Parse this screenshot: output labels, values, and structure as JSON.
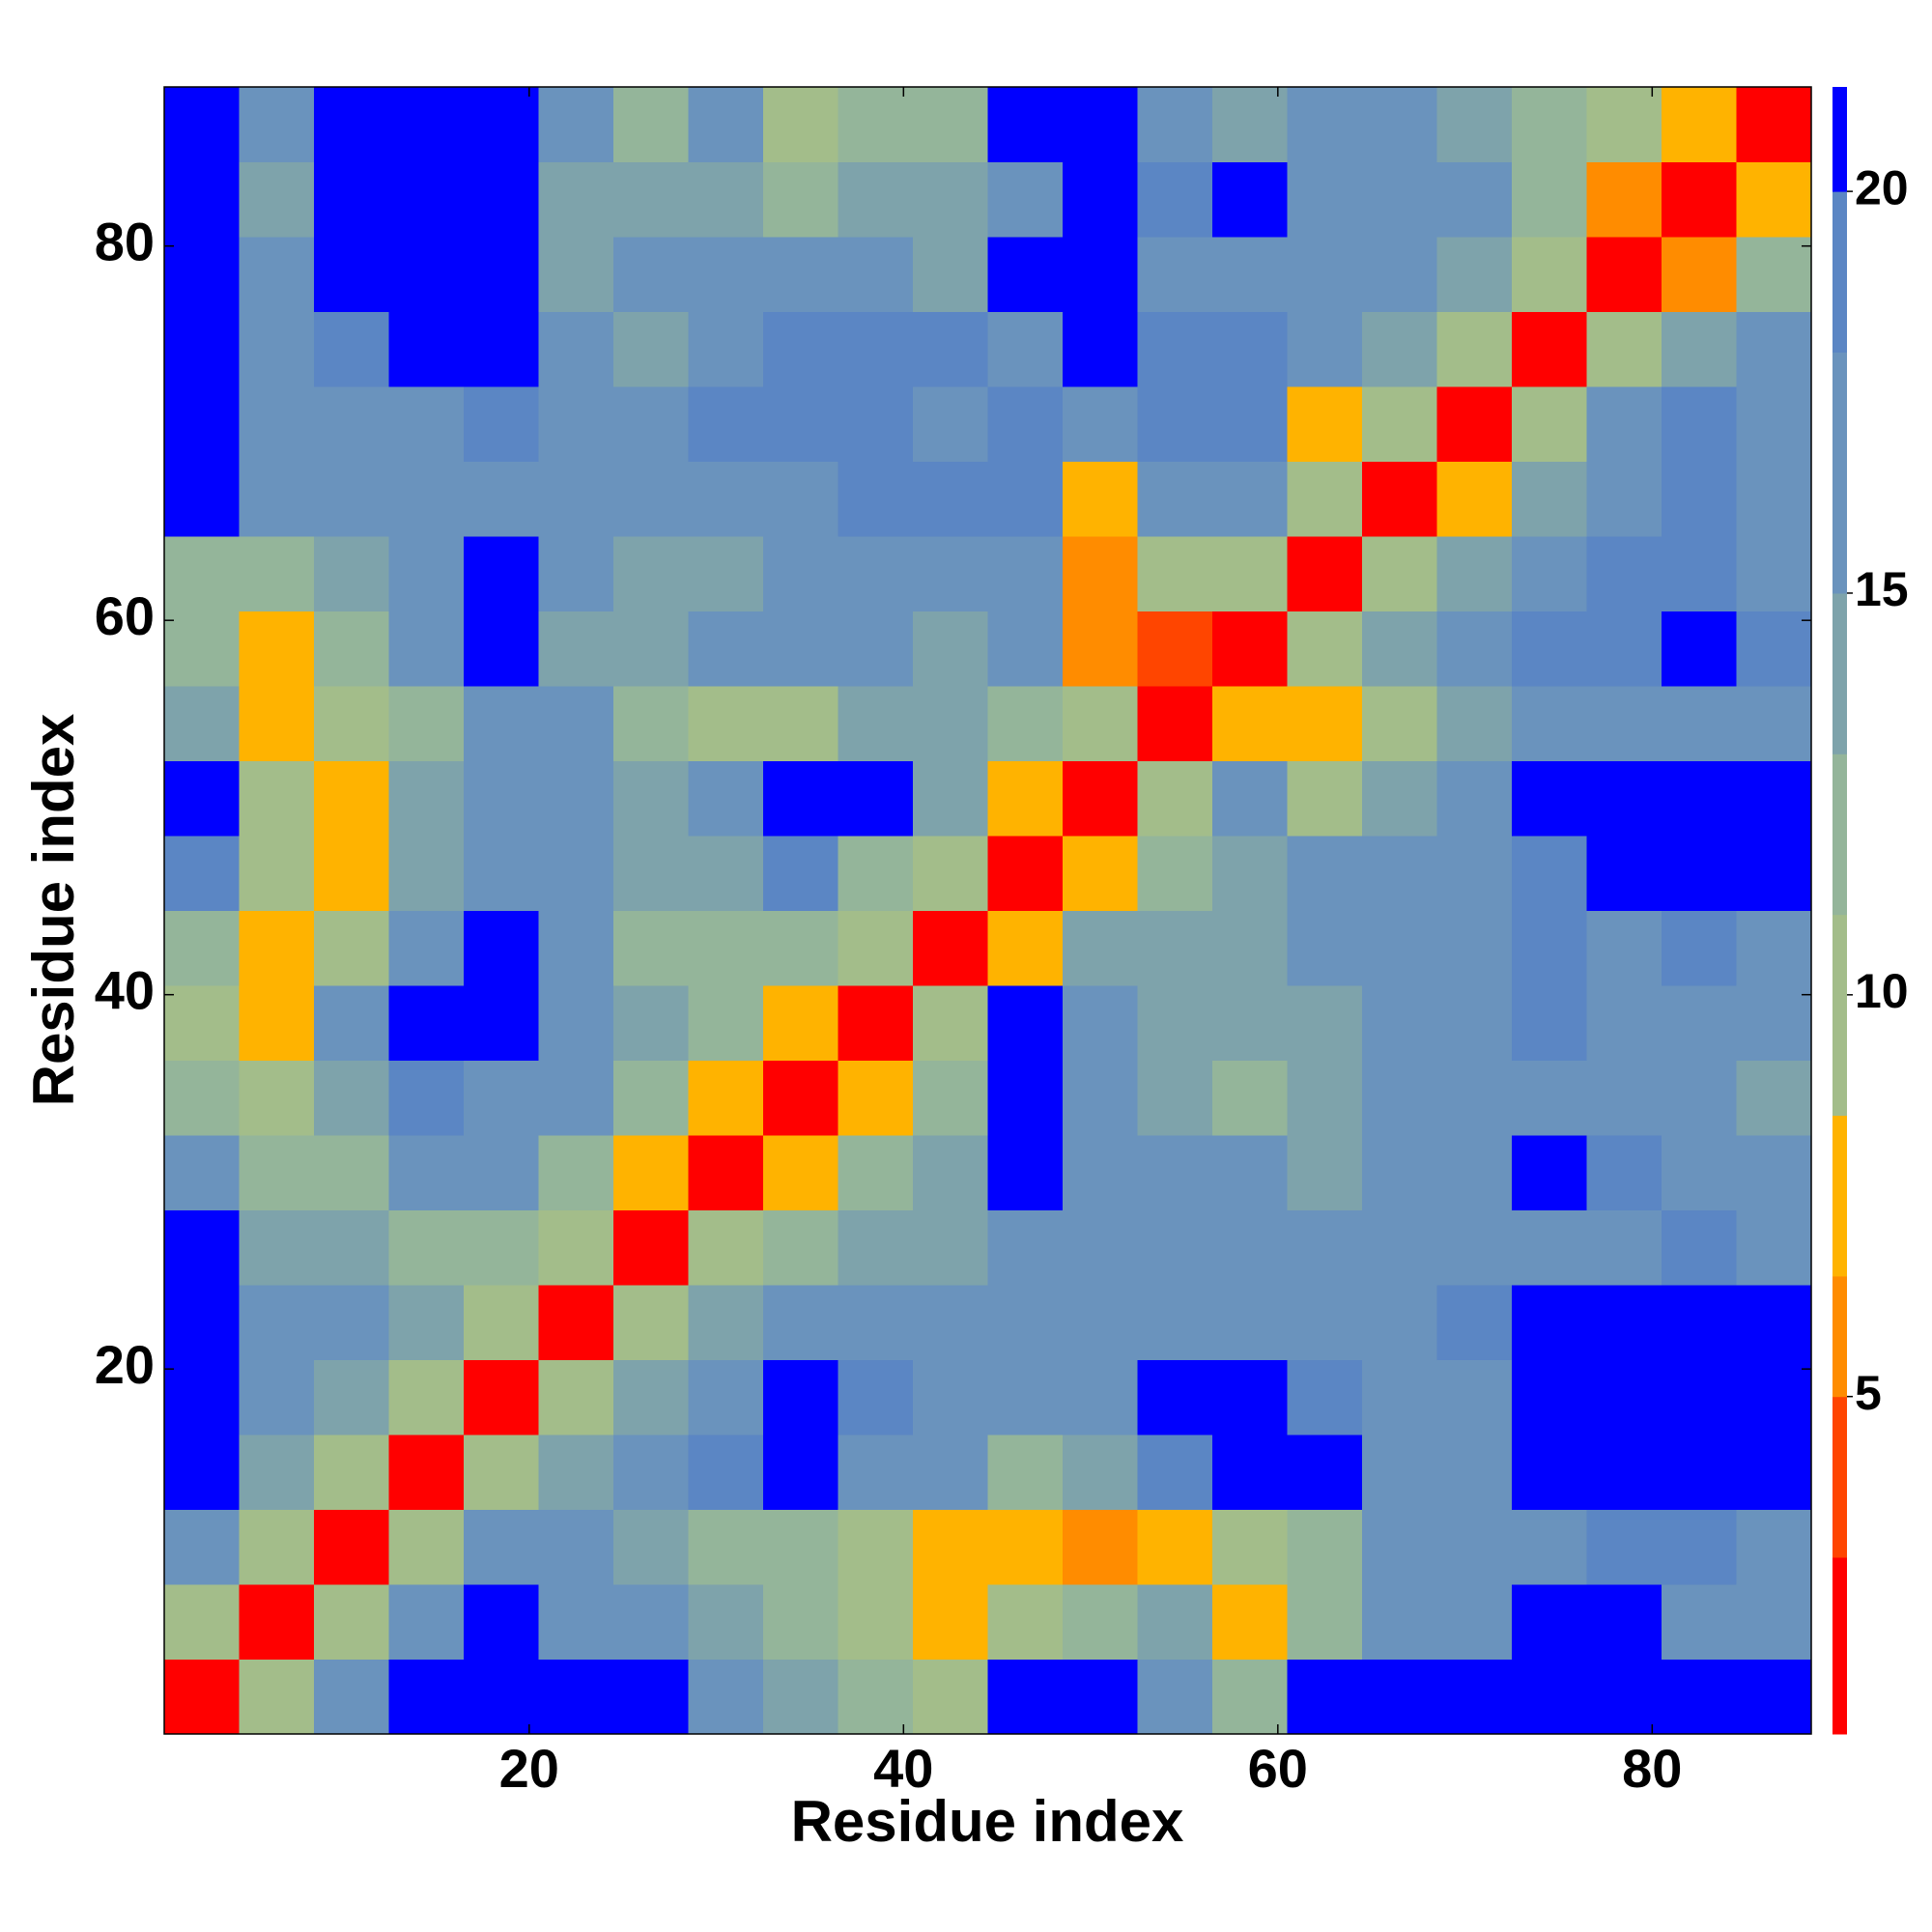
{
  "chart_data": {
    "type": "heatmap",
    "xlabel": "Residue index",
    "ylabel": "Residue index",
    "xlim": [
      0.5,
      88.5
    ],
    "ylim": [
      0.5,
      88.5
    ],
    "xticks": [
      20,
      40,
      60,
      80
    ],
    "yticks": [
      20,
      40,
      60,
      80
    ],
    "xbins": [
      0.5,
      4.5,
      8.5,
      12.5,
      16.5,
      20.5,
      24.5,
      28.5,
      32.5,
      36.5,
      40.5,
      44.5,
      48.5,
      52.5,
      56.5,
      60.5,
      64.5,
      68.5,
      72.5,
      76.5,
      80.5,
      84.5,
      88.5
    ],
    "ybins": [
      0.5,
      4.5,
      8.5,
      12.5,
      16.5,
      20.5,
      24.5,
      28.5,
      32.5,
      36.5,
      40.5,
      44.5,
      48.5,
      52.5,
      56.5,
      60.5,
      64.5,
      68.5,
      72.5,
      76.5,
      80.5,
      84.5,
      88.5
    ],
    "values": [
      [
        3,
        9,
        17,
        21,
        21,
        21,
        21,
        16,
        14,
        12,
        9,
        21,
        21,
        16,
        13,
        21,
        21,
        21,
        21,
        21,
        21,
        21
      ],
      [
        9,
        3,
        9,
        16,
        21,
        18,
        16,
        14,
        12,
        9,
        7,
        9,
        12,
        14,
        8,
        13,
        18,
        16,
        21,
        21,
        18,
        18
      ],
      [
        17,
        9,
        3,
        10,
        16,
        18,
        15,
        13,
        12,
        11,
        8,
        7,
        6,
        7,
        10,
        13,
        16,
        17,
        18,
        19,
        19,
        18
      ],
      [
        21,
        15,
        9,
        3,
        9,
        15,
        17,
        19,
        21,
        18,
        16,
        13,
        15,
        19,
        21,
        21,
        18,
        16,
        21,
        21,
        21,
        21
      ],
      [
        21,
        17,
        15,
        9,
        3,
        9,
        15,
        18,
        21,
        19,
        17,
        18,
        18,
        21,
        21,
        19,
        17,
        18,
        21,
        21,
        21,
        21
      ],
      [
        21,
        18,
        16,
        14,
        9,
        3,
        9,
        14,
        17,
        18,
        17,
        16,
        17,
        18,
        18,
        17,
        18,
        19,
        21,
        21,
        21,
        21
      ],
      [
        21,
        15,
        14,
        13,
        12,
        9,
        3,
        9,
        13,
        15,
        14,
        17,
        16,
        16,
        17,
        17,
        16,
        17,
        18,
        17,
        19,
        18
      ],
      [
        17,
        13,
        12,
        16,
        17,
        13,
        8,
        3,
        8,
        13,
        14,
        21,
        17,
        16,
        16,
        15,
        17,
        18,
        21,
        19,
        17,
        16
      ],
      [
        13,
        10,
        14,
        19,
        18,
        16,
        12,
        8,
        3,
        7,
        13,
        21,
        16,
        14,
        13,
        15,
        16,
        17,
        18,
        17,
        16,
        15
      ],
      [
        11,
        7,
        16,
        21,
        21,
        17,
        14,
        12,
        7,
        3,
        9,
        21,
        16,
        15,
        14,
        15,
        17,
        18,
        20,
        18,
        17,
        16
      ],
      [
        12,
        7,
        9,
        17,
        21,
        18,
        12,
        13,
        12,
        9,
        3,
        8,
        14,
        14,
        15,
        17,
        17,
        18,
        19,
        18,
        19,
        18
      ],
      [
        19,
        10,
        8,
        15,
        17,
        16,
        15,
        15,
        19,
        13,
        9,
        3,
        7,
        13,
        15,
        17,
        17,
        18,
        20,
        21,
        21,
        21
      ],
      [
        21,
        11,
        7,
        14,
        17,
        18,
        15,
        18,
        21,
        21,
        14,
        8,
        3,
        9,
        16,
        9,
        14,
        18,
        21,
        21,
        21,
        21
      ],
      [
        15,
        7,
        10,
        13,
        17,
        16,
        13,
        10,
        10,
        14,
        15,
        12,
        9,
        3,
        7,
        7,
        11,
        14,
        18,
        17,
        17,
        16
      ],
      [
        12,
        8,
        13,
        18,
        21,
        15,
        14,
        16,
        17,
        16,
        15,
        17,
        6,
        5,
        3,
        9,
        14,
        17,
        20,
        20,
        21,
        20
      ],
      [
        13,
        12,
        15,
        18,
        21,
        17,
        15,
        15,
        17,
        16,
        16,
        17,
        6,
        9,
        9,
        3,
        9,
        15,
        18,
        20,
        19,
        18
      ],
      [
        21,
        16,
        16,
        16,
        18,
        18,
        17,
        16,
        18,
        19,
        20,
        19,
        8,
        16,
        16,
        9,
        3,
        7,
        15,
        18,
        19,
        18
      ],
      [
        21,
        17,
        16,
        18,
        19,
        17,
        18,
        19,
        20,
        19,
        17,
        20,
        18,
        19,
        19,
        8,
        9,
        3,
        9,
        16,
        19,
        18
      ],
      [
        21,
        16,
        20,
        21,
        21,
        16,
        15,
        17,
        19,
        19,
        20,
        18,
        21,
        19,
        19,
        18,
        15,
        9,
        3,
        9,
        14,
        17
      ],
      [
        21,
        16,
        21,
        21,
        21,
        15,
        17,
        17,
        16,
        17,
        15,
        21,
        21,
        17,
        18,
        18,
        17,
        15,
        9,
        3,
        6,
        12
      ],
      [
        21,
        15,
        21,
        21,
        21,
        14,
        15,
        14,
        13,
        14,
        14,
        17,
        21,
        19,
        21,
        18,
        18,
        17,
        12,
        6,
        3,
        7
      ],
      [
        21,
        17,
        21,
        21,
        21,
        16,
        13,
        16,
        11,
        12,
        13,
        21,
        21,
        16,
        15,
        17,
        16,
        15,
        13,
        10,
        7,
        3
      ]
    ],
    "clim": [
      0.8,
      21.3
    ],
    "cticks": [
      5,
      10,
      15,
      20
    ],
    "colorscale": [
      [
        3,
        "#ff0000"
      ],
      [
        5,
        "#ff4500"
      ],
      [
        6.5,
        "#ff8c00"
      ],
      [
        8.5,
        "#ffb300"
      ],
      [
        11,
        "#a3bd8a"
      ],
      [
        13,
        "#94b59a"
      ],
      [
        15,
        "#7ea3ab"
      ],
      [
        18,
        "#6a93bd"
      ],
      [
        20,
        "#5b86c4"
      ],
      [
        21.3,
        "#0000ff"
      ]
    ]
  }
}
